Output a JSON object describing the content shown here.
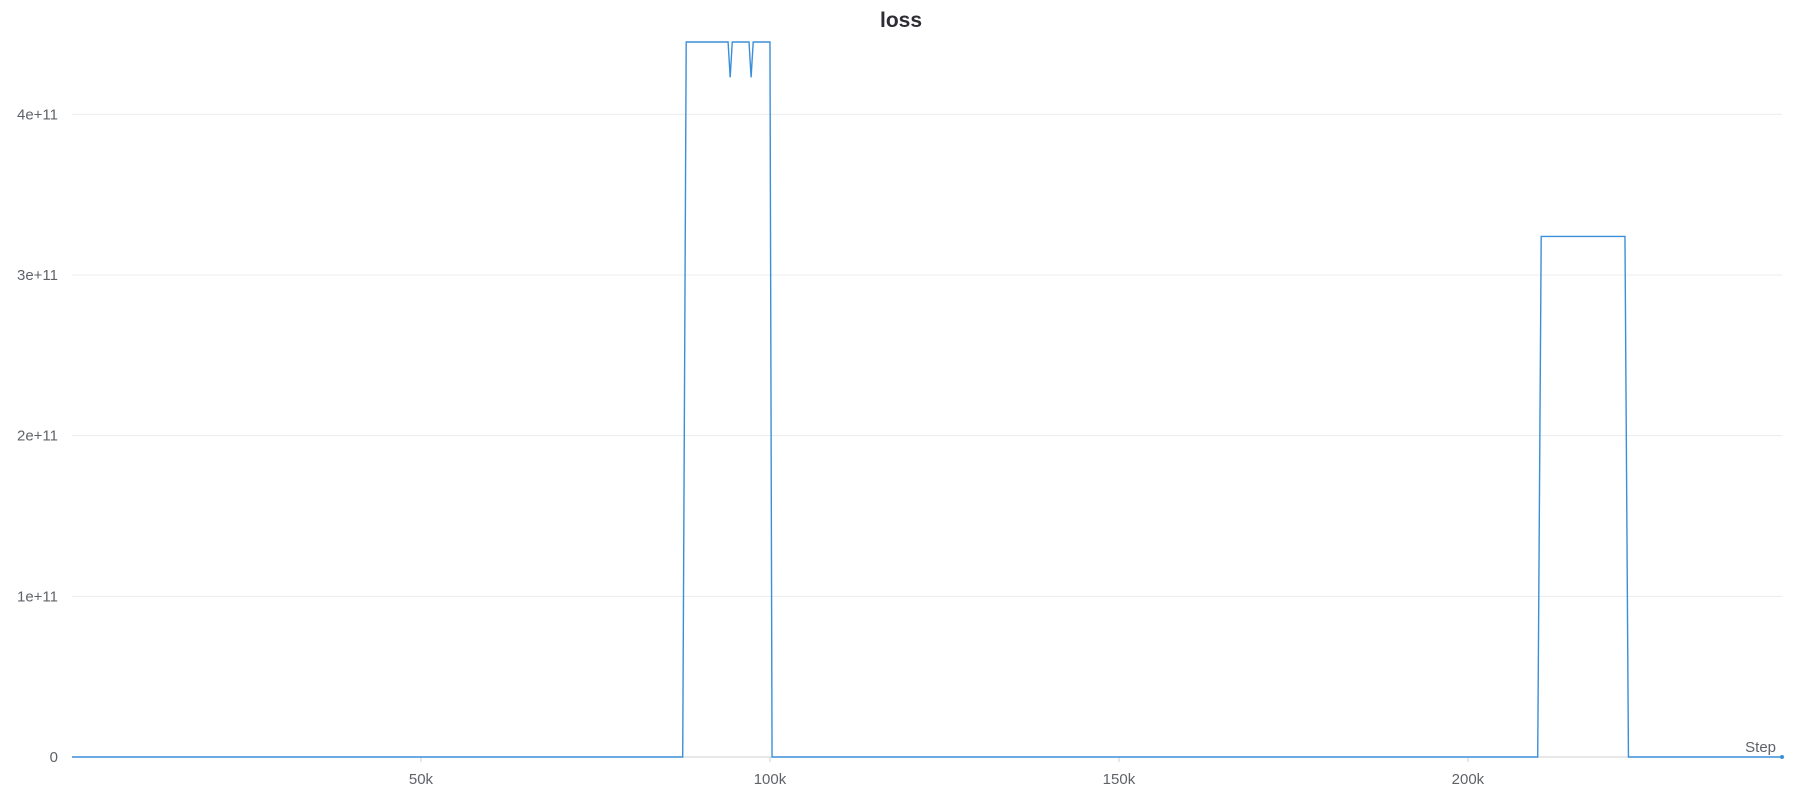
{
  "chart_data": {
    "type": "line",
    "title": "loss",
    "xlabel": "Step",
    "ylabel": "",
    "xlim": [
      0,
      245000
    ],
    "ylim": [
      0,
      445000000000
    ],
    "x_ticks": [
      {
        "value": 50000,
        "label": "50k"
      },
      {
        "value": 100000,
        "label": "100k"
      },
      {
        "value": 150000,
        "label": "150k"
      },
      {
        "value": 200000,
        "label": "200k"
      }
    ],
    "y_ticks": [
      {
        "value": 0,
        "label": "0"
      },
      {
        "value": 100000000000,
        "label": "1e+11"
      },
      {
        "value": 200000000000,
        "label": "2e+11"
      },
      {
        "value": 300000000000,
        "label": "3e+11"
      },
      {
        "value": 400000000000,
        "label": "4e+11"
      }
    ],
    "grid": true,
    "line_color": "#3b8fd9",
    "series": [
      {
        "x": [
          0,
          87500,
          88000,
          94000,
          94300,
          94600,
          97000,
          97300,
          97600,
          100000,
          100300,
          210000,
          210500,
          222500,
          223000,
          245000
        ],
        "y": [
          0,
          0,
          445000000000,
          445000000000,
          423000000000,
          445000000000,
          445000000000,
          423000000000,
          445000000000,
          445000000000,
          0,
          0,
          324000000000,
          324000000000,
          0,
          0
        ]
      }
    ]
  }
}
